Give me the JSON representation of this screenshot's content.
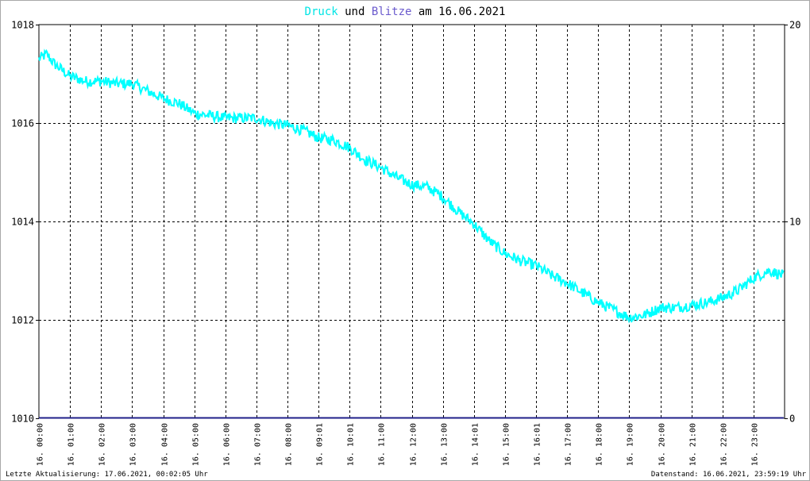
{
  "title": {
    "part1": "Druck",
    "part2": " und ",
    "part3": "Blitze",
    "part4": " am 16.06.2021"
  },
  "footer": {
    "left": "Letzte Aktualisierung: 17.06.2021, 00:02:05 Uhr",
    "right": "Datenstand: 16.06.2021, 23:59:19 Uhr"
  },
  "colors": {
    "pressure": "#00ffff",
    "lightning": "#5a5acd",
    "baseline": "#20208a",
    "grid": "#000000"
  },
  "chart_data": {
    "type": "line",
    "y_left_lim": [
      1010,
      1018
    ],
    "y_left_ticks": [
      "1010",
      "1012",
      "1014",
      "1016",
      "1018"
    ],
    "y_right_lim": [
      0,
      20
    ],
    "y_right_ticks": [
      "0",
      "10",
      "20"
    ],
    "x_hour_range": [
      0,
      24
    ],
    "grid": true,
    "x_ticks": [
      {
        "h": 0,
        "label": "16. 00:00"
      },
      {
        "h": 1,
        "label": "16. 01:00"
      },
      {
        "h": 2,
        "label": "16. 02:00"
      },
      {
        "h": 3,
        "label": "16. 03:00"
      },
      {
        "h": 4,
        "label": "16. 04:00"
      },
      {
        "h": 5,
        "label": "16. 05:00"
      },
      {
        "h": 6,
        "label": "16. 06:00"
      },
      {
        "h": 7,
        "label": "16. 07:00"
      },
      {
        "h": 8,
        "label": "16. 08:00"
      },
      {
        "h": 9,
        "label": "16. 09:01"
      },
      {
        "h": 10,
        "label": "16. 10:01"
      },
      {
        "h": 11,
        "label": "16. 11:00"
      },
      {
        "h": 12,
        "label": "16. 12:00"
      },
      {
        "h": 13,
        "label": "16. 13:00"
      },
      {
        "h": 14,
        "label": "16. 14:01"
      },
      {
        "h": 15,
        "label": "16. 15:00"
      },
      {
        "h": 16,
        "label": "16. 16:01"
      },
      {
        "h": 17,
        "label": "16. 17:00"
      },
      {
        "h": 18,
        "label": "16. 18:00"
      },
      {
        "h": 19,
        "label": "16. 19:00"
      },
      {
        "h": 20,
        "label": "16. 20:00"
      },
      {
        "h": 21,
        "label": "16. 21:00"
      },
      {
        "h": 22,
        "label": "16. 22:00"
      },
      {
        "h": 23,
        "label": "16. 23:00"
      }
    ],
    "series": [
      {
        "name": "Druck",
        "axis": "left",
        "hours": [
          0,
          0.25,
          0.5,
          1,
          1.5,
          2,
          2.5,
          3,
          3.5,
          4,
          4.5,
          5,
          5.5,
          6,
          6.5,
          7,
          7.5,
          8,
          8.5,
          9,
          9.5,
          10,
          10.5,
          11,
          11.5,
          12,
          12.5,
          13,
          13.5,
          14,
          14.5,
          15,
          15.5,
          16,
          16.5,
          17,
          17.5,
          18,
          18.5,
          19,
          19.5,
          20,
          20.5,
          21,
          21.5,
          22,
          22.5,
          23,
          23.5,
          23.97
        ],
        "values": [
          1017.3,
          1017.4,
          1017.2,
          1016.95,
          1016.85,
          1016.85,
          1016.8,
          1016.8,
          1016.65,
          1016.5,
          1016.4,
          1016.2,
          1016.15,
          1016.1,
          1016.1,
          1016.1,
          1016.0,
          1015.95,
          1015.85,
          1015.7,
          1015.65,
          1015.5,
          1015.25,
          1015.1,
          1014.9,
          1014.75,
          1014.7,
          1014.5,
          1014.2,
          1013.95,
          1013.6,
          1013.35,
          1013.2,
          1013.1,
          1012.9,
          1012.75,
          1012.55,
          1012.35,
          1012.2,
          1012.05,
          1012.1,
          1012.25,
          1012.25,
          1012.3,
          1012.35,
          1012.45,
          1012.6,
          1012.85,
          1013.0,
          1012.9
        ]
      },
      {
        "name": "Blitze",
        "axis": "right",
        "hours": [
          0,
          23.97
        ],
        "values": [
          0,
          0
        ]
      }
    ]
  }
}
